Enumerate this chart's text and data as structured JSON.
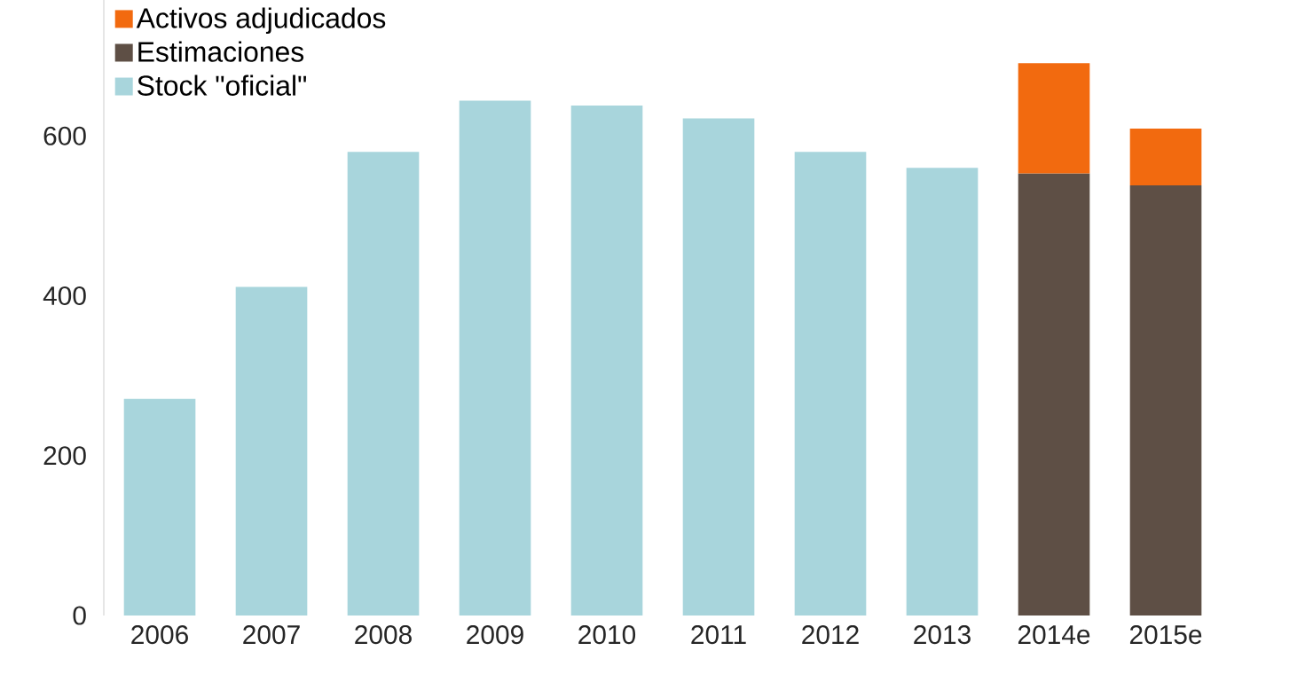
{
  "chart_data": {
    "type": "bar",
    "stacked": true,
    "categories": [
      "2006",
      "2007",
      "2008",
      "2009",
      "2010",
      "2011",
      "2012",
      "2013",
      "2014e",
      "2015e"
    ],
    "series": [
      {
        "name": "Stock \"oficial\"",
        "color": "#a8d5dc",
        "values": [
          271,
          411,
          580,
          644,
          638,
          622,
          580,
          560,
          null,
          null
        ]
      },
      {
        "name": "Estimaciones",
        "color": "#5e4f45",
        "values": [
          null,
          null,
          null,
          null,
          null,
          null,
          null,
          null,
          553,
          538
        ]
      },
      {
        "name": "Activos adjudicados",
        "color": "#f26a0f",
        "values": [
          null,
          null,
          null,
          null,
          null,
          null,
          null,
          null,
          138,
          71
        ]
      }
    ],
    "ylim": [
      0,
      770
    ],
    "yticks": [
      0,
      200,
      400,
      600
    ],
    "legend": "top left",
    "grid": false
  }
}
